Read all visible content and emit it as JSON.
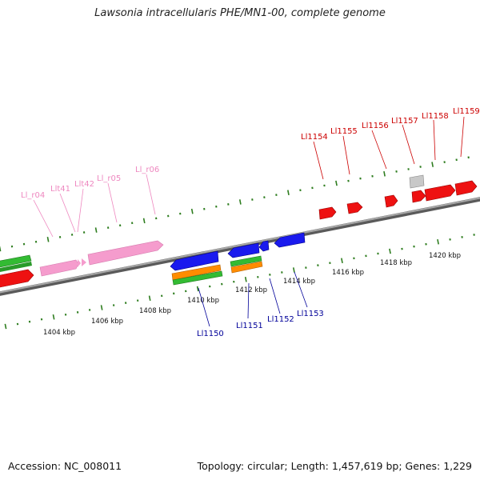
{
  "title": "Lawsonia intracellularis PHE/MN1-00, complete genome",
  "footer": {
    "accession": "Accession: NC_008011",
    "summary": "Topology: circular; Length: 1,457,619 bp; Genes: 1,229"
  },
  "colors": {
    "backbone": "#8c8c8c",
    "tick": "#2e7d1f",
    "cds_red": "#ee1111",
    "cds_blue": "#1a1aee",
    "rna_pink": "#f59ccd",
    "gray_feature": "#c8c8c8",
    "green_feature": "#33bb33",
    "orange_feature": "#ff8c00",
    "label_red": "#cc0000",
    "label_blue": "#000099",
    "label_pink": "#ee88c0"
  },
  "scale": {
    "labels": [
      "1404 kbp",
      "1406 kbp",
      "1408 kbp",
      "1410 kbp",
      "1412 kbp",
      "1414 kbp",
      "1416 kbp",
      "1418 kbp",
      "1420 kbp"
    ]
  },
  "labels": {
    "forward": [
      "Ll1154",
      "Ll1155",
      "Ll1156",
      "Ll1157",
      "Ll1158",
      "Ll1159"
    ],
    "reverse": [
      "Ll1150",
      "Ll1151",
      "Ll1152",
      "Ll1153"
    ],
    "rna": [
      "Ll_r04",
      "Llt41",
      "Llt42",
      "Ll_r05",
      "Ll_r06"
    ]
  }
}
